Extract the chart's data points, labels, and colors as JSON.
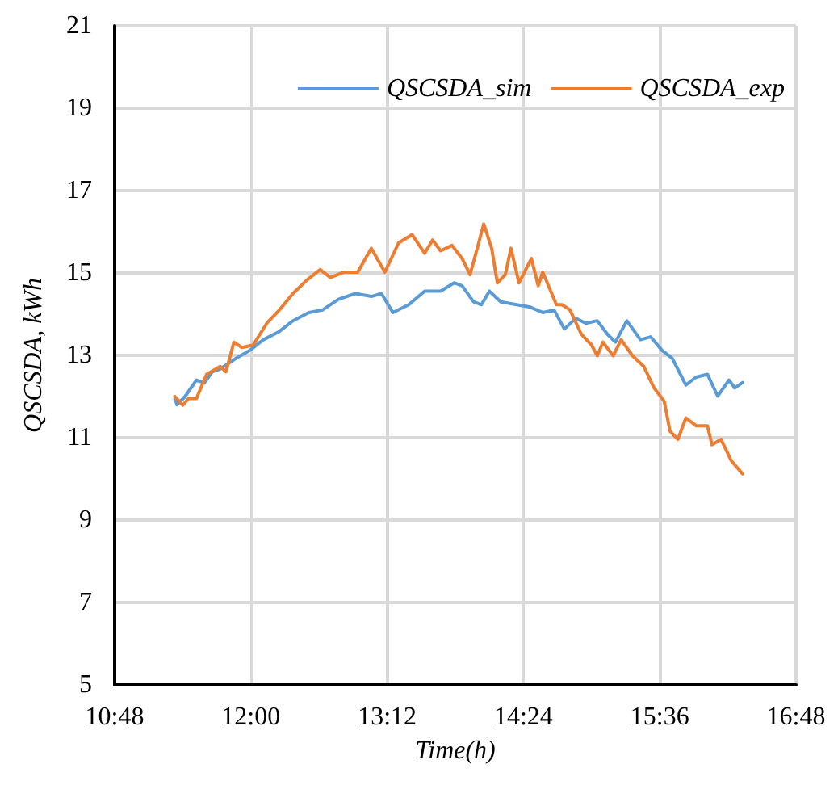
{
  "chart_data": {
    "type": "line",
    "xlabel": "Time(h)",
    "ylabel": "QSCSDA, kWh",
    "xlim": [
      10.8,
      16.8
    ],
    "xticks": [
      {
        "value": 10.8,
        "label": "10:48"
      },
      {
        "value": 12,
        "label": "12:00"
      },
      {
        "value": 13.2,
        "label": "13:12"
      },
      {
        "value": 14.4,
        "label": "14:24"
      },
      {
        "value": 15.6,
        "label": "15:36"
      },
      {
        "value": 16.8,
        "label": "16:48"
      }
    ],
    "ylim": [
      5,
      21
    ],
    "yticks": [
      5,
      7,
      9,
      11,
      13,
      15,
      17,
      19,
      21
    ],
    "grid": true,
    "legend": "top right",
    "marker": "none",
    "line_style": "solid",
    "series": [
      {
        "name": "QSCSDA_sim",
        "color": "#5b9bd5",
        "x": [
          11.33,
          11.35,
          11.42,
          11.52,
          11.59,
          11.66,
          11.73,
          11.8,
          11.87,
          11.99,
          12.11,
          12.25,
          12.37,
          12.51,
          12.63,
          12.77,
          12.92,
          13.06,
          13.15,
          13.25,
          13.39,
          13.53,
          13.67,
          13.79,
          13.86,
          13.96,
          14.03,
          14.1,
          14.2,
          14.34,
          14.46,
          14.57,
          14.67,
          14.76,
          14.86,
          14.95,
          15.05,
          15.14,
          15.21,
          15.31,
          15.43,
          15.52,
          15.62,
          15.71,
          15.83,
          15.92,
          16.02,
          16.11,
          16.21,
          16.26,
          16.33
        ],
        "values": [
          11.95,
          11.8,
          12.0,
          12.4,
          12.33,
          12.6,
          12.67,
          12.8,
          12.93,
          13.12,
          13.38,
          13.58,
          13.84,
          14.04,
          14.1,
          14.36,
          14.5,
          14.43,
          14.5,
          14.04,
          14.23,
          14.56,
          14.56,
          14.76,
          14.69,
          14.3,
          14.23,
          14.56,
          14.3,
          14.23,
          14.17,
          14.04,
          14.1,
          13.64,
          13.9,
          13.78,
          13.84,
          13.51,
          13.32,
          13.84,
          13.38,
          13.45,
          13.12,
          12.93,
          12.28,
          12.47,
          12.54,
          12.01,
          12.4,
          12.21,
          12.34
        ]
      },
      {
        "name": "QSCSDA_exp",
        "color": "#ed7d31",
        "x": [
          11.33,
          11.4,
          11.45,
          11.52,
          11.61,
          11.73,
          11.78,
          11.85,
          11.92,
          12.02,
          12.14,
          12.25,
          12.37,
          12.49,
          12.61,
          12.7,
          12.82,
          12.94,
          13.06,
          13.18,
          13.3,
          13.42,
          13.53,
          13.6,
          13.67,
          13.77,
          13.86,
          13.93,
          14.0,
          14.05,
          14.12,
          14.17,
          14.24,
          14.29,
          14.36,
          14.47,
          14.53,
          14.57,
          14.69,
          14.74,
          14.81,
          14.91,
          15.0,
          15.05,
          15.1,
          15.19,
          15.26,
          15.36,
          15.46,
          15.55,
          15.64,
          15.69,
          15.76,
          15.83,
          15.92,
          16.02,
          16.06,
          16.14,
          16.23,
          16.33
        ],
        "values": [
          12.0,
          11.79,
          11.95,
          11.95,
          12.54,
          12.73,
          12.6,
          13.32,
          13.19,
          13.25,
          13.78,
          14.1,
          14.5,
          14.82,
          15.08,
          14.89,
          15.02,
          15.02,
          15.6,
          15.02,
          15.73,
          15.93,
          15.48,
          15.8,
          15.54,
          15.67,
          15.35,
          14.96,
          15.67,
          16.19,
          15.6,
          14.76,
          14.96,
          15.6,
          14.76,
          15.35,
          14.69,
          15.02,
          14.23,
          14.23,
          14.1,
          13.51,
          13.25,
          12.99,
          13.32,
          12.99,
          13.38,
          12.99,
          12.73,
          12.21,
          11.88,
          11.16,
          10.96,
          11.48,
          11.29,
          11.29,
          10.83,
          10.96,
          10.44,
          10.12
        ]
      }
    ]
  }
}
